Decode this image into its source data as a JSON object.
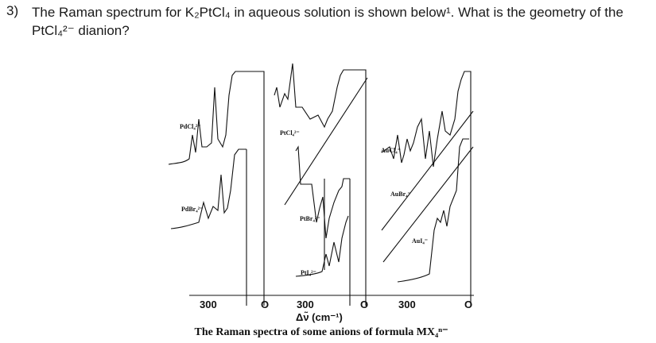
{
  "question": {
    "number": "3)",
    "text": "The Raman spectrum for K₂PtCl₄ in aqueous solution is shown below¹. What is the geometry of the PtCl₄²⁻ dianion?"
  },
  "figure": {
    "panels": [
      {
        "labels": [
          "PdCl₄²⁻",
          "PdBr₄²⁻"
        ],
        "axis": [
          "300",
          "O"
        ]
      },
      {
        "labels": [
          "PtCl₄²⁻",
          "PtBr₄²⁻",
          "PtI₄²⁻"
        ],
        "axis": [
          "300",
          "O"
        ]
      },
      {
        "labels": [
          "AuCl₄⁻",
          "AuBr₄⁻",
          "AuI₄⁻"
        ],
        "axis": [
          "300",
          "O"
        ]
      }
    ],
    "axis_title": "Δν̃ (cm⁻¹)",
    "caption": "The Raman spectra of some anions of formula MX₄ⁿ⁻"
  }
}
